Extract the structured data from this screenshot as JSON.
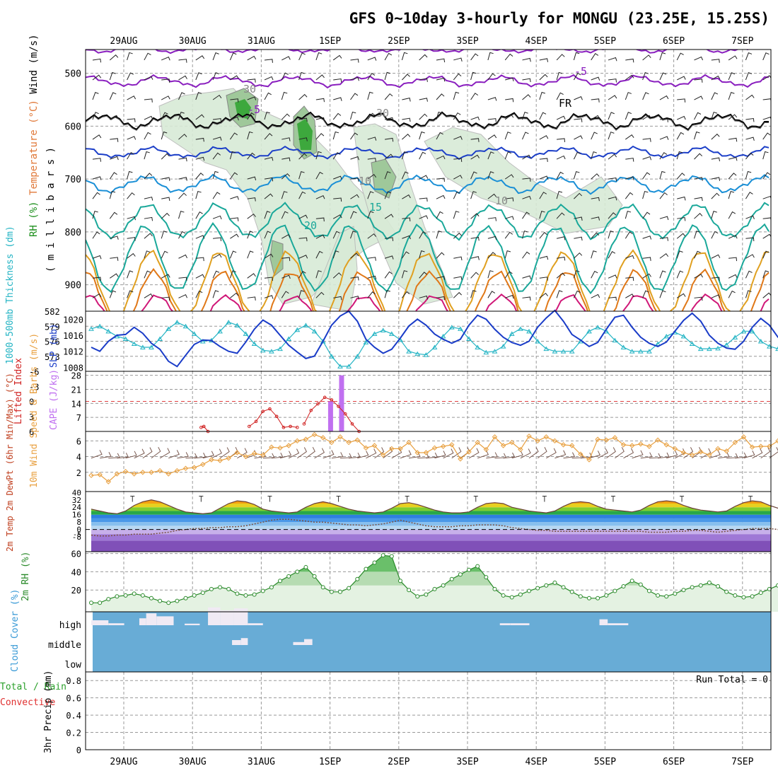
{
  "chart_data": [
    {
      "panel": "upper-air",
      "type": "contour",
      "title": "GFS 0~10day 3-hourly for MONGU (23.25E, 15.25S)",
      "x_dates": [
        "29AUG",
        "30AUG",
        "31AUG",
        "1SEP",
        "2SEP",
        "3SEP",
        "4SEP",
        "5SEP",
        "6SEP",
        "7SEP"
      ],
      "ylabel_parts": [
        "RH (%)",
        "Temperature (°C)",
        "Wind (m/s)"
      ],
      "yunit_label": "( m i l l i b a r s )",
      "y_ticks": [
        "500",
        "600",
        "700",
        "800",
        "900"
      ],
      "contour_labels": [
        "-5",
        "-5",
        "FR",
        "10",
        "15",
        "20",
        "30",
        "30",
        "10"
      ],
      "isotherms_c": [
        -10,
        -5,
        0,
        5,
        10,
        15,
        20,
        25,
        30,
        35
      ],
      "freezing_level_label": "FR",
      "colors": {
        "cold": "#8a1fbf",
        "freezing": "#000000",
        "cool": "#1c3fc8",
        "mild": "#1a8fd6",
        "warm_teal": "#1aa89a",
        "warm": "#e0a020",
        "hot": "#e07818",
        "hottest": "#d01878",
        "rh_fill": "#3da83d"
      }
    },
    {
      "panel": "thickness-slp",
      "type": "line",
      "ylabel_left": "1000-500mb Thickness (dm)",
      "ylabel_right": "SLP (mb)",
      "left_ticks": [
        "582",
        "579",
        "576",
        "573"
      ],
      "right_ticks": [
        "1020",
        "1016",
        "1012",
        "1008"
      ],
      "series": [
        {
          "name": "1000-500mb Thickness",
          "unit": "dm",
          "color": "#24b4c4",
          "values": [
            578.5,
            579.0,
            578.0,
            577.0,
            576.5,
            575.5,
            574.8,
            574.8,
            576.5,
            578.5,
            579.8,
            579.0,
            577.5,
            576.0,
            576.2,
            578.0,
            579.8,
            579.2,
            577.5,
            575.5,
            574.2,
            574.0,
            574.5,
            576.5,
            578.3,
            579.2,
            578.0,
            576.0,
            573.0,
            571.0,
            571.0,
            573.0,
            575.8,
            577.5,
            578.2,
            577.5,
            576.3,
            574.0,
            573.5,
            573.3,
            574.8,
            577.0,
            578.8,
            578.5,
            576.5,
            574.8,
            573.8,
            574.0,
            575.0,
            577.5,
            578.5,
            578.0,
            576.0,
            574.5,
            574.0,
            574.0,
            574.0,
            576.0,
            578.0,
            578.8,
            578.0,
            576.2,
            574.8,
            574.0,
            574.0,
            574.0,
            575.5,
            577.0,
            577.8,
            577.0,
            575.5,
            574.5,
            574.5,
            574.6,
            575.3,
            576.8,
            578.0,
            578.0,
            576.0,
            575.0,
            574.5,
            575.5,
            577.5,
            579.5,
            579.0,
            577.5,
            575.5,
            574.0,
            575.0,
            576.0
          ]
        },
        {
          "name": "SLP",
          "unit": "mb",
          "color": "#1a3cc8",
          "values": [
            1013.0,
            1012.0,
            1014.5,
            1016.0,
            1016.2,
            1018.0,
            1016.5,
            1014.0,
            1012.5,
            1009.5,
            1008.2,
            1011.0,
            1013.7,
            1014.8,
            1014.7,
            1013.2,
            1012.0,
            1011.5,
            1014.3,
            1017.5,
            1019.8,
            1018.5,
            1016.0,
            1013.5,
            1011.8,
            1010.2,
            1010.8,
            1014.5,
            1018.5,
            1020.8,
            1022.0,
            1019.5,
            1015.0,
            1013.0,
            1011.5,
            1012.5,
            1015.3,
            1018.3,
            1020.0,
            1018.5,
            1016.3,
            1015.0,
            1014.0,
            1015.0,
            1018.5,
            1021.0,
            1020.0,
            1017.5,
            1015.5,
            1014.2,
            1013.5,
            1014.5,
            1018.0,
            1020.3,
            1022.2,
            1019.5,
            1016.2,
            1014.8,
            1013.2,
            1014.2,
            1017.5,
            1020.5,
            1021.0,
            1018.0,
            1015.5,
            1014.0,
            1013.2,
            1014.3,
            1017.0,
            1019.7,
            1021.5,
            1019.5,
            1016.0,
            1014.0,
            1012.8,
            1012.5,
            1014.5,
            1018.0,
            1020.2,
            1018.5,
            1015.5,
            1014.0,
            1013.0,
            1011.0,
            1011.5,
            1013.5,
            1016.5,
            1018.0,
            1019.0,
            1020.5
          ]
        }
      ]
    },
    {
      "panel": "instability",
      "type": "bar+line",
      "ylabel_left": "Lifted Index",
      "ylabel_right": "CAPE (J/kg)",
      "left_ticks": [
        "-6",
        "-3",
        "0",
        "3",
        "6"
      ],
      "right_ticks": [
        "28",
        "21",
        "14",
        "7"
      ],
      "series": [
        {
          "name": "CAPE",
          "unit": "J/kg",
          "color": "#c070f0",
          "bars": [
            {
              "day": 3.48,
              "value": 15
            },
            {
              "day": 3.64,
              "value": 28
            }
          ]
        },
        {
          "name": "Lifted Index",
          "color": "#d02020",
          "segments": [
            [
              [
                1.6,
                5.2
              ],
              [
                1.64,
                5.0
              ],
              [
                1.7,
                6.0
              ]
            ],
            [
              [
                2.3,
                5.0
              ],
              [
                2.4,
                4.0
              ],
              [
                2.5,
                2.0
              ],
              [
                2.6,
                1.5
              ],
              [
                2.7,
                3.0
              ],
              [
                2.8,
                5.2
              ],
              [
                2.9,
                5.0
              ],
              [
                3.0,
                5.2
              ]
            ],
            [
              [
                3.1,
                4.5
              ],
              [
                3.2,
                1.8
              ],
              [
                3.3,
                0.5
              ],
              [
                3.4,
                -0.8
              ],
              [
                3.5,
                -0.3
              ],
              [
                3.6,
                1.0
              ],
              [
                3.7,
                2.5
              ],
              [
                3.8,
                4.5
              ],
              [
                3.9,
                6.0
              ]
            ]
          ]
        }
      ],
      "reference_line_lifted_index": 0
    },
    {
      "panel": "wind-10m",
      "type": "line",
      "ylabel": "10m Wind Speed & Barbs (m/s)",
      "y_ticks": [
        "6",
        "4",
        "2"
      ],
      "series": [
        {
          "name": "10m Wind Speed",
          "unit": "m/s",
          "color": "#e8a040",
          "values": [
            1.6,
            1.7,
            0.8,
            1.8,
            2.1,
            1.8,
            2.0,
            2.0,
            2.2,
            1.8,
            2.2,
            2.5,
            2.6,
            3.0,
            3.6,
            3.5,
            3.8,
            4.5,
            4.0,
            4.4,
            4.2,
            5.2,
            5.1,
            5.4,
            6.0,
            6.2,
            6.8,
            6.4,
            5.8,
            6.5,
            5.8,
            6.1,
            5.1,
            5.4,
            4.2,
            5.0,
            5.0,
            5.8,
            4.5,
            4.5,
            5.1,
            5.3,
            5.5,
            3.7,
            4.6,
            5.8,
            4.9,
            6.5,
            5.4,
            5.8,
            4.9,
            6.6,
            6.0,
            6.5,
            6.0,
            5.5,
            5.4,
            4.3,
            3.6,
            6.2,
            6.1,
            6.4,
            5.5,
            5.4,
            5.6,
            5.3,
            6.1,
            5.5,
            5.0,
            4.5,
            4.2,
            4.6,
            4.2,
            5.0,
            4.7,
            5.8,
            6.5,
            5.2,
            5.3,
            5.3,
            6.0,
            6.2,
            5.9,
            5.0,
            5.2,
            4.3,
            4.8,
            4.4,
            4.3,
            4.0,
            5.3,
            6.5,
            6.2
          ]
        },
        {
          "name": "10m Wind Barbs",
          "color": "#7a5a50"
        }
      ]
    },
    {
      "panel": "temperature-2m",
      "type": "area",
      "ylabel": "2m Temp 2m DewPt (6hr Min/Max) (°C)",
      "y_ticks": [
        "40",
        "32",
        "24",
        "16",
        "8",
        "0",
        "-8"
      ],
      "extra_ticks": [
        "-5"
      ],
      "series": [
        {
          "name": "2m Temp",
          "unit": "°C",
          "values": [
            22,
            20,
            18,
            17,
            20,
            26,
            30,
            32,
            30,
            26,
            22,
            19,
            18,
            17,
            18,
            23,
            28,
            31,
            30,
            27,
            22,
            20,
            19,
            18,
            19,
            24,
            28,
            30,
            28,
            25,
            22,
            20,
            19,
            18,
            19,
            23,
            28,
            29,
            27,
            24,
            21,
            19,
            18,
            18,
            19,
            24,
            28,
            29,
            28,
            24,
            22,
            20,
            19,
            18,
            20,
            25,
            29,
            30,
            29,
            25,
            22,
            21,
            20,
            19,
            21,
            26,
            30,
            31,
            30,
            26,
            23,
            21,
            20,
            19,
            20,
            25,
            29,
            31,
            30,
            26,
            23,
            21,
            20,
            20,
            21,
            26,
            31,
            34,
            32,
            27,
            23,
            21,
            20,
            21
          ]
        },
        {
          "name": "2m DewPt",
          "unit": "°C",
          "values": [
            -6,
            -7,
            -7,
            -6,
            -6,
            -5,
            -5,
            -5,
            -4,
            -3,
            -1,
            0,
            1,
            1,
            2,
            2,
            3,
            3,
            4,
            6,
            8,
            10,
            11,
            11,
            10,
            9,
            8,
            8,
            7,
            6,
            5,
            5,
            4,
            5,
            6,
            8,
            10,
            8,
            6,
            4,
            3,
            3,
            3,
            4,
            4,
            5,
            5,
            5,
            4,
            2,
            1,
            0,
            -1,
            -1,
            -2,
            -2,
            -2,
            -2,
            -2,
            -2,
            -2,
            -2,
            -2,
            -2,
            -2,
            -3,
            -3,
            -3,
            -2,
            -2,
            -1,
            -1,
            -2,
            -3,
            -2,
            -1,
            0,
            1,
            1,
            1,
            0,
            -1,
            -3,
            -4,
            -4,
            -5,
            -5,
            -5,
            -5,
            -5
          ]
        }
      ]
    },
    {
      "panel": "rh-2m",
      "type": "area",
      "ylabel": "2m RH (%)",
      "y_ticks": [
        "60",
        "40",
        "20"
      ],
      "series": [
        {
          "name": "2m RH",
          "unit": "%",
          "values": [
            6,
            6,
            10,
            13,
            14,
            16,
            14,
            11,
            8,
            6,
            8,
            11,
            14,
            17,
            21,
            23,
            21,
            16,
            14,
            15,
            19,
            23,
            30,
            35,
            40,
            45,
            35,
            23,
            18,
            18,
            22,
            32,
            43,
            50,
            58,
            57,
            30,
            20,
            13,
            15,
            21,
            25,
            32,
            37,
            42,
            46,
            34,
            21,
            14,
            12,
            15,
            19,
            22,
            25,
            28,
            23,
            18,
            13,
            11,
            11,
            14,
            19,
            24,
            30,
            26,
            19,
            14,
            13,
            16,
            20,
            23,
            25,
            28,
            24,
            18,
            14,
            12,
            13,
            17,
            21,
            25,
            29,
            24,
            18,
            13,
            11,
            13,
            16,
            21,
            25,
            30,
            28,
            21,
            18
          ]
        }
      ]
    },
    {
      "panel": "cloud-cover",
      "type": "heatmap",
      "ylabel": "Cloud Cover (%)",
      "y_categories": [
        "high",
        "middle",
        "low"
      ],
      "colors": {
        "clear": "#68acd6",
        "cloud": "#f0eaf4"
      },
      "cloud_blocks": [
        {
          "level": "high",
          "day_start": 0.0,
          "day_end": 0.25,
          "cover": 0.25
        },
        {
          "level": "high",
          "day_start": 0.25,
          "day_end": 0.48,
          "cover": 0.1
        },
        {
          "level": "high",
          "day_start": 0.7,
          "day_end": 0.8,
          "cover": 0.35
        },
        {
          "level": "high",
          "day_start": 0.8,
          "day_end": 0.95,
          "cover": 0.6
        },
        {
          "level": "high",
          "day_start": 0.95,
          "day_end": 1.2,
          "cover": 0.45
        },
        {
          "level": "high",
          "day_start": 1.36,
          "day_end": 1.58,
          "cover": 0.08
        },
        {
          "level": "high",
          "day_start": 1.7,
          "day_end": 1.88,
          "cover": 0.9
        },
        {
          "level": "high",
          "day_start": 1.88,
          "day_end": 2.08,
          "cover": 0.75
        },
        {
          "level": "high",
          "day_start": 2.08,
          "day_end": 2.28,
          "cover": 0.85
        },
        {
          "level": "high",
          "day_start": 2.28,
          "day_end": 2.5,
          "cover": 0.1
        },
        {
          "level": "middle",
          "day_start": 2.05,
          "day_end": 2.18,
          "cover": 0.25
        },
        {
          "level": "middle",
          "day_start": 2.18,
          "day_end": 2.28,
          "cover": 0.35
        },
        {
          "level": "middle",
          "day_start": 2.94,
          "day_end": 3.1,
          "cover": 0.15
        },
        {
          "level": "middle",
          "day_start": 3.1,
          "day_end": 3.22,
          "cover": 0.3
        },
        {
          "level": "high",
          "day_start": 5.95,
          "day_end": 6.1,
          "cover": 0.1
        },
        {
          "level": "high",
          "day_start": 6.1,
          "day_end": 6.38,
          "cover": 0.1
        },
        {
          "level": "high",
          "day_start": 7.4,
          "day_end": 7.52,
          "cover": 0.3
        },
        {
          "level": "high",
          "day_start": 7.52,
          "day_end": 7.82,
          "cover": 0.1
        }
      ]
    },
    {
      "panel": "precipitation",
      "type": "bar",
      "ylabel_parts": [
        "Total / Rain",
        "Convective",
        "3hr Precip (mm)"
      ],
      "y_ticks": [
        "0.8",
        "0.6",
        "0.4",
        "0.2",
        "0"
      ],
      "annotation": "Run Total = 0",
      "values": []
    }
  ]
}
